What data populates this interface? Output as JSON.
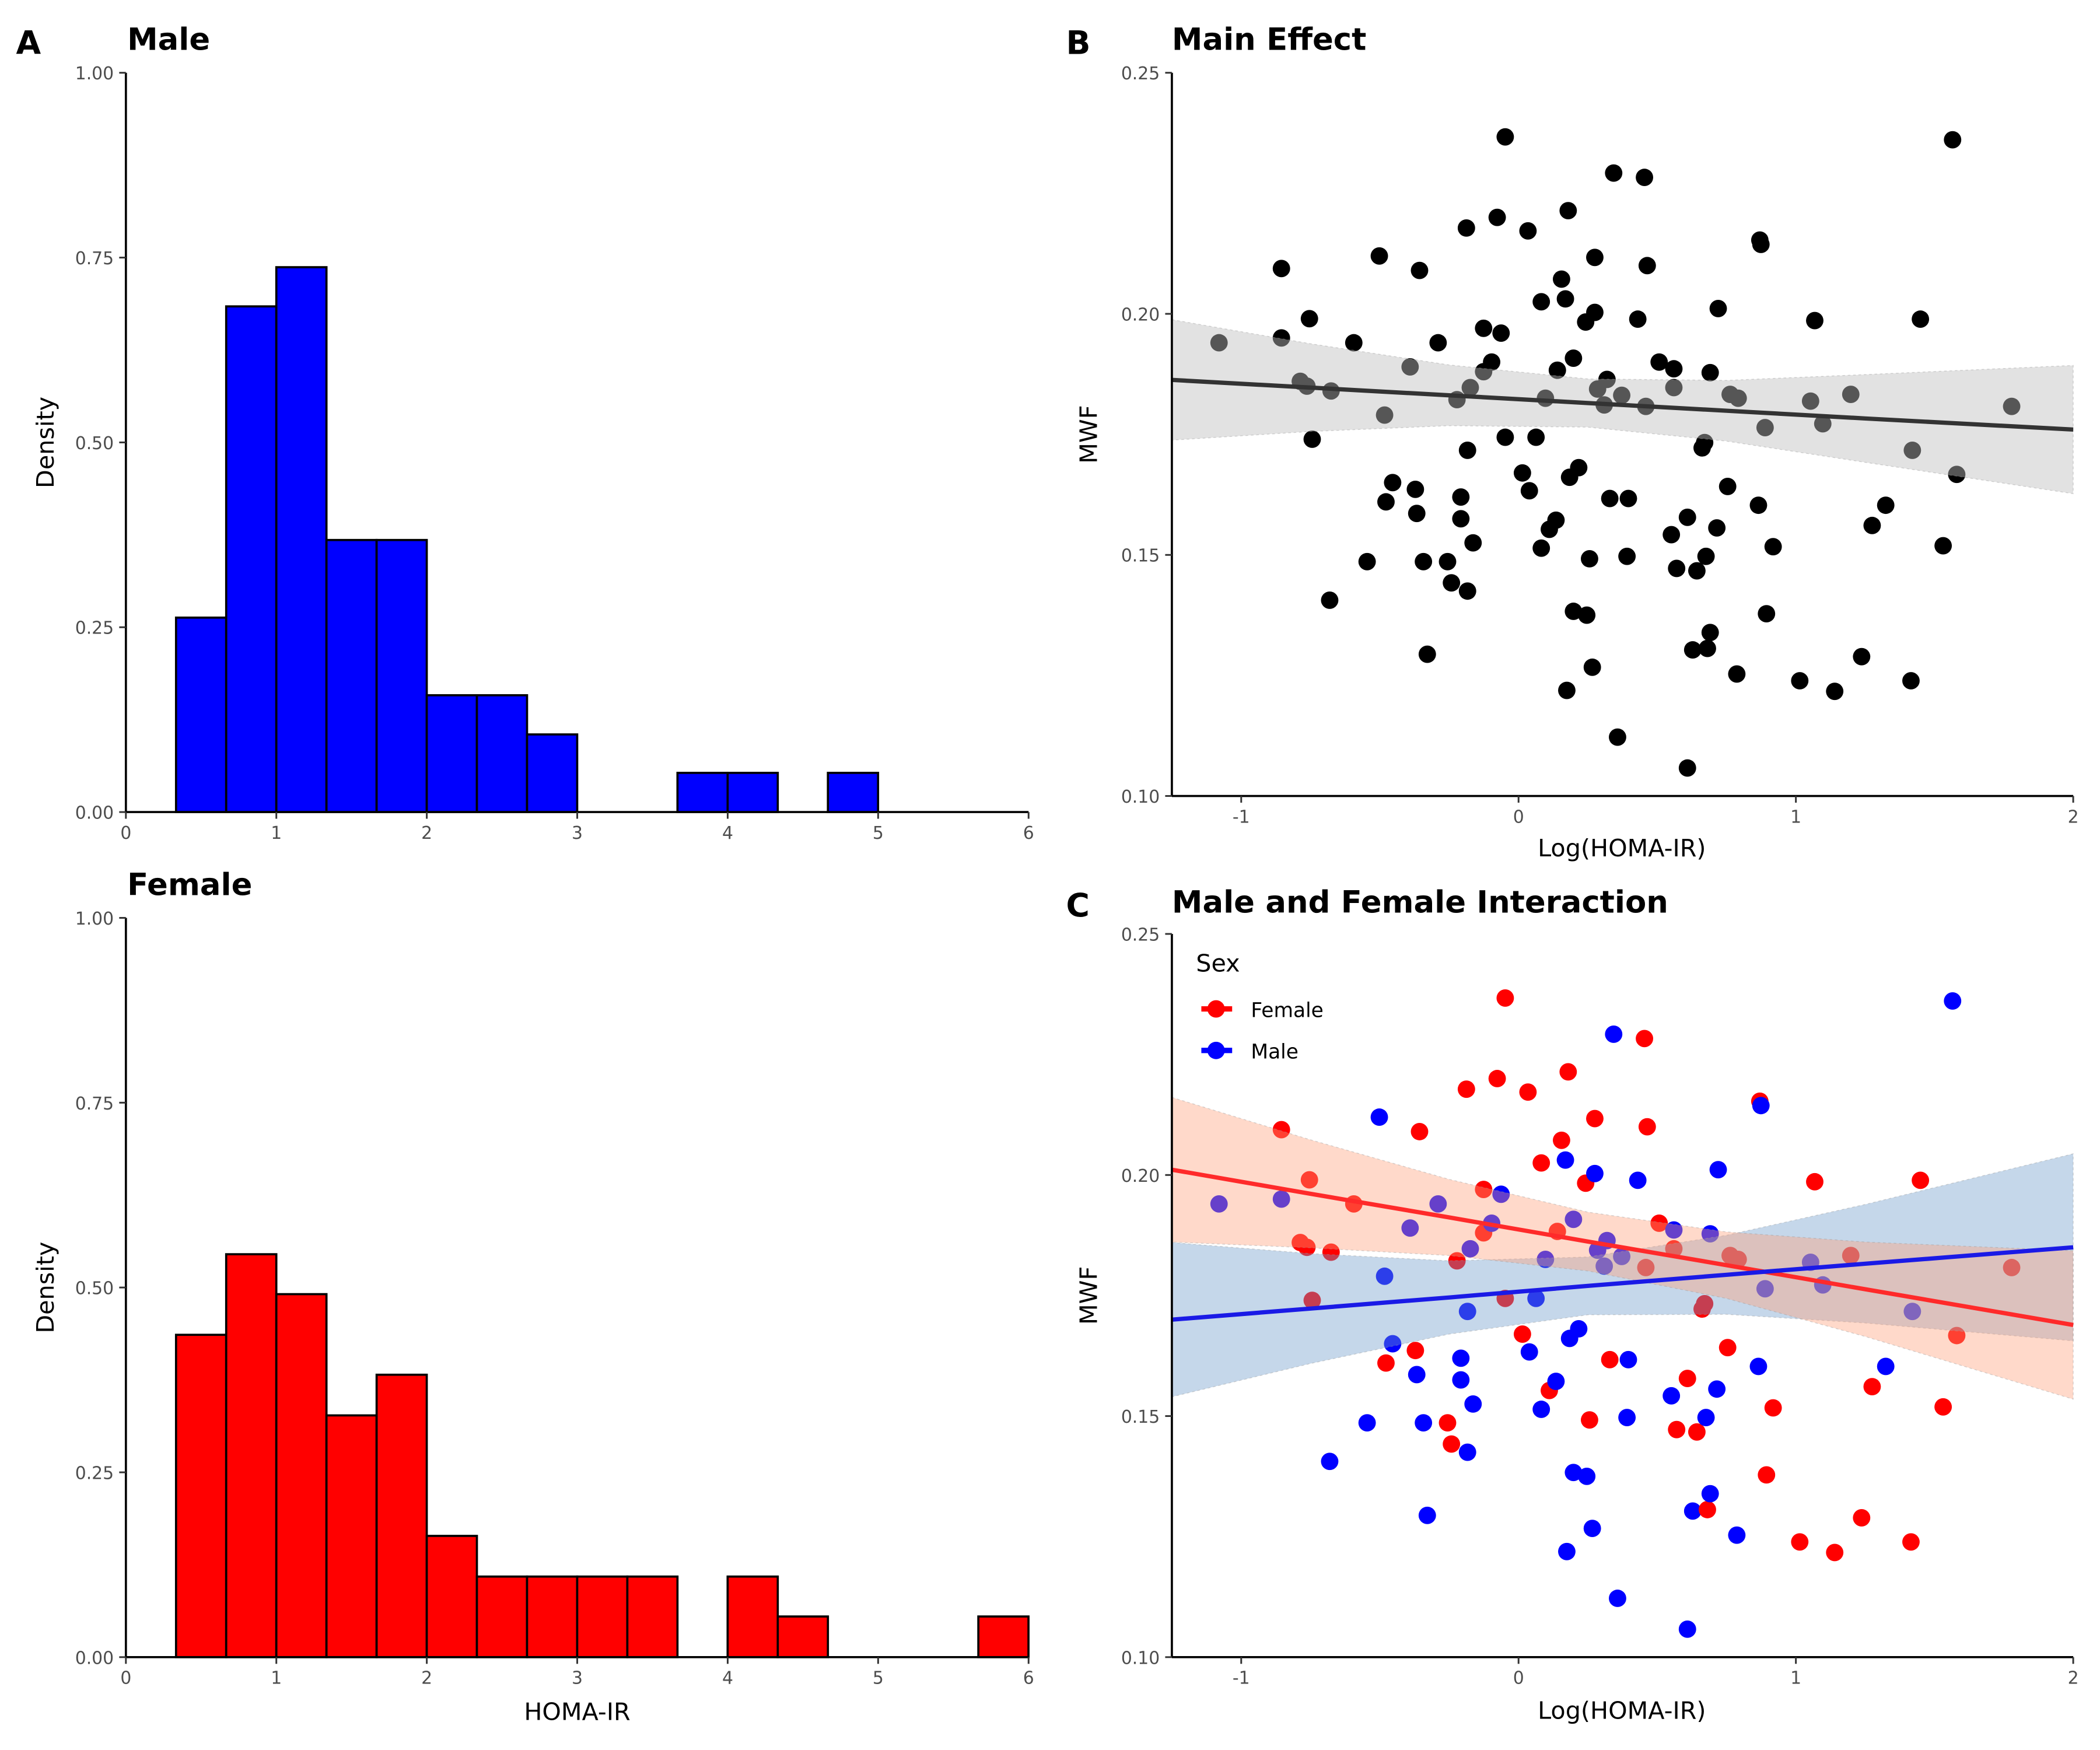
{
  "panel_labels": {
    "a": "A",
    "b": "B",
    "c": "C"
  },
  "colors": {
    "male": "#0000FF",
    "female": "#FF0000",
    "fit_main": "#333333",
    "ribbon_main": "#BEBEBE",
    "ribbon_female": "#FFA07A",
    "ribbon_male": "#6E9CCB",
    "male_line": "#1A1AE6",
    "female_line": "#FF2A2A"
  },
  "chart_data": [
    {
      "type": "bar",
      "title": "Male",
      "xlabel": "",
      "ylabel": "Density",
      "xlim": [
        0,
        6
      ],
      "ylim": [
        0,
        1
      ],
      "xticks": [
        "0",
        "1",
        "2",
        "3",
        "4",
        "5",
        "6"
      ],
      "yticks": [
        "0.00",
        "0.25",
        "0.50",
        "0.75",
        "1.00"
      ],
      "bin_start": 0.3333,
      "bin_width": 0.3333,
      "density": [
        0.263,
        0.684,
        0.737,
        0.368,
        0.368,
        0.158,
        0.158,
        0.105,
        0,
        0,
        0.053,
        0.053,
        0,
        0.053
      ],
      "fill": "#0000FF"
    },
    {
      "type": "bar",
      "title": "Female",
      "xlabel": "HOMA-IR",
      "ylabel": "Density",
      "xlim": [
        0,
        6
      ],
      "ylim": [
        0,
        1
      ],
      "xticks": [
        "0",
        "1",
        "2",
        "3",
        "4",
        "5",
        "6"
      ],
      "yticks": [
        "0.00",
        "0.25",
        "0.50",
        "0.75",
        "1.00"
      ],
      "bin_start": 0.3333,
      "bin_width": 0.3333,
      "density": [
        0.436,
        0.545,
        0.491,
        0.327,
        0.382,
        0.164,
        0.109,
        0.109,
        0.109,
        0.109,
        0,
        0.109,
        0.055,
        0,
        0,
        0,
        0.055
      ],
      "fill": "#FF0000"
    },
    {
      "type": "scatter",
      "title": "Main Effect",
      "xlabel": "Log(HOMA-IR)",
      "ylabel": "MWF",
      "xlim": [
        -1.25,
        2
      ],
      "ylim": [
        0.1,
        0.25
      ],
      "xticks": [
        "-1",
        "0",
        "1",
        "2"
      ],
      "yticks": [
        "0.10",
        "0.15",
        "0.20",
        "0.25"
      ],
      "fit": {
        "x": [
          -1.25,
          -0.75,
          -0.25,
          0.25,
          0.75,
          1.25,
          2
        ],
        "y": [
          0.1863,
          0.1847,
          0.1831,
          0.1815,
          0.1799,
          0.1783,
          0.176
        ],
        "lower": [
          0.1738,
          0.1756,
          0.1768,
          0.1765,
          0.1736,
          0.1692,
          0.1627
        ],
        "upper": [
          0.1988,
          0.1938,
          0.1894,
          0.1865,
          0.1862,
          0.1874,
          0.1893
        ]
      },
      "points": [
        [
          -1.08,
          0.194
        ],
        [
          -0.855,
          0.2094
        ],
        [
          -0.855,
          0.195
        ],
        [
          -0.754,
          0.199
        ],
        [
          -0.787,
          0.186
        ],
        [
          -0.763,
          0.185
        ],
        [
          -0.744,
          0.174
        ],
        [
          -0.676,
          0.184
        ],
        [
          -0.681,
          0.1406
        ],
        [
          -0.594,
          0.194
        ],
        [
          -0.546,
          0.1486
        ],
        [
          -0.502,
          0.212
        ],
        [
          -0.483,
          0.179
        ],
        [
          -0.454,
          0.165
        ],
        [
          -0.478,
          0.161
        ],
        [
          -0.391,
          0.189
        ],
        [
          -0.357,
          0.209
        ],
        [
          -0.372,
          0.1636
        ],
        [
          -0.367,
          0.1586
        ],
        [
          -0.343,
          0.1486
        ],
        [
          -0.329,
          0.1294
        ],
        [
          -0.29,
          0.194
        ],
        [
          -0.256,
          0.1486
        ],
        [
          -0.242,
          0.1442
        ],
        [
          -0.222,
          0.1822
        ],
        [
          -0.208,
          0.162
        ],
        [
          -0.208,
          0.1575
        ],
        [
          -0.188,
          0.2178
        ],
        [
          -0.184,
          0.1717
        ],
        [
          -0.184,
          0.1425
        ],
        [
          -0.174,
          0.1847
        ],
        [
          -0.164,
          0.1525
        ],
        [
          -0.126,
          0.197
        ],
        [
          -0.126,
          0.188
        ],
        [
          -0.097,
          0.19
        ],
        [
          -0.077,
          0.22
        ],
        [
          -0.063,
          0.196
        ],
        [
          -0.048,
          0.2367
        ],
        [
          -0.048,
          0.1744
        ],
        [
          0.014,
          0.167
        ],
        [
          0.034,
          0.2172
        ],
        [
          0.039,
          0.1633
        ],
        [
          0.063,
          0.1744
        ],
        [
          0.082,
          0.2025
        ],
        [
          0.082,
          0.1514
        ],
        [
          0.097,
          0.1825
        ],
        [
          0.111,
          0.1553
        ],
        [
          0.135,
          0.1572
        ],
        [
          0.14,
          0.1883
        ],
        [
          0.155,
          0.2072
        ],
        [
          0.169,
          0.2031
        ],
        [
          0.179,
          0.2214
        ],
        [
          0.174,
          0.1219
        ],
        [
          0.184,
          0.1661
        ],
        [
          0.198,
          0.1908
        ],
        [
          0.198,
          0.1383
        ],
        [
          0.217,
          0.1681
        ],
        [
          0.242,
          0.1983
        ],
        [
          0.246,
          0.1375
        ],
        [
          0.256,
          0.1492
        ],
        [
          0.266,
          0.1267
        ],
        [
          0.275,
          0.2117
        ],
        [
          0.275,
          0.2003
        ],
        [
          0.285,
          0.1844
        ],
        [
          0.319,
          0.1864
        ],
        [
          0.309,
          0.1811
        ],
        [
          0.329,
          0.1617
        ],
        [
          0.343,
          0.2292
        ],
        [
          0.357,
          0.1122
        ],
        [
          0.372,
          0.1831
        ],
        [
          0.396,
          0.1617
        ],
        [
          0.391,
          0.1497
        ],
        [
          0.43,
          0.1989
        ],
        [
          0.454,
          0.2283
        ],
        [
          0.464,
          0.21
        ],
        [
          0.459,
          0.1808
        ],
        [
          0.507,
          0.19
        ],
        [
          0.551,
          0.1542
        ],
        [
          0.56,
          0.1847
        ],
        [
          0.56,
          0.1886
        ],
        [
          0.57,
          0.1472
        ],
        [
          0.609,
          0.1578
        ],
        [
          0.609,
          0.1058
        ],
        [
          0.628,
          0.1303
        ],
        [
          0.643,
          0.1467
        ],
        [
          0.662,
          0.1722
        ],
        [
          0.671,
          0.1733
        ],
        [
          0.676,
          0.1497
        ],
        [
          0.681,
          0.1306
        ],
        [
          0.691,
          0.1339
        ],
        [
          0.691,
          0.1878
        ],
        [
          0.715,
          0.1556
        ],
        [
          0.72,
          0.2011
        ],
        [
          0.754,
          0.1642
        ],
        [
          0.763,
          0.1833
        ],
        [
          0.792,
          0.1825
        ],
        [
          0.787,
          0.1253
        ],
        [
          0.865,
          0.1603
        ],
        [
          0.87,
          0.2153
        ],
        [
          0.874,
          0.2144
        ],
        [
          0.889,
          0.1764
        ],
        [
          0.894,
          0.1378
        ],
        [
          0.918,
          0.1517
        ],
        [
          1.014,
          0.1239
        ],
        [
          1.053,
          0.1819
        ],
        [
          1.068,
          0.1986
        ],
        [
          1.097,
          0.1772
        ],
        [
          1.14,
          0.1217
        ],
        [
          1.198,
          0.1833
        ],
        [
          1.237,
          0.1289
        ],
        [
          1.275,
          0.1561
        ],
        [
          1.324,
          0.1603
        ],
        [
          1.415,
          0.1239
        ],
        [
          1.42,
          0.1717
        ],
        [
          1.449,
          0.1989
        ],
        [
          1.531,
          0.1519
        ],
        [
          1.565,
          0.2361
        ],
        [
          1.58,
          0.1667
        ],
        [
          1.778,
          0.1808
        ]
      ]
    },
    {
      "type": "scatter",
      "title": "Male and Female Interaction",
      "xlabel": "Log(HOMA-IR)",
      "ylabel": "MWF",
      "xlim": [
        -1.25,
        2
      ],
      "ylim": [
        0.1,
        0.25
      ],
      "xticks": [
        "-1",
        "0",
        "1",
        "2"
      ],
      "yticks": [
        "0.10",
        "0.15",
        "0.20",
        "0.25"
      ],
      "legend": {
        "title": "Sex",
        "position": "top-left",
        "entries": [
          {
            "key": "F",
            "label": "Female"
          },
          {
            "key": "M",
            "label": "Male"
          }
        ]
      },
      "fits": {
        "F": {
          "x": [
            -1.25,
            -0.75,
            -0.25,
            0.25,
            0.75,
            1.25,
            2
          ],
          "y": [
            0.2011,
            0.1961,
            0.1912,
            0.1862,
            0.1813,
            0.1763,
            0.1689
          ],
          "lower": [
            0.1861,
            0.1849,
            0.1833,
            0.1801,
            0.1744,
            0.1665,
            0.1535
          ],
          "upper": [
            0.2161,
            0.2073,
            0.1991,
            0.1923,
            0.1882,
            0.1861,
            0.1843
          ]
        },
        "M": {
          "x": [
            -1.25,
            -0.75,
            -0.25,
            0.25,
            0.75,
            1.25,
            2
          ],
          "y": [
            0.17,
            0.1723,
            0.1746,
            0.177,
            0.1793,
            0.1816,
            0.185
          ],
          "lower": [
            0.154,
            0.1609,
            0.167,
            0.171,
            0.1711,
            0.1693,
            0.1656
          ],
          "upper": [
            0.186,
            0.1837,
            0.1822,
            0.183,
            0.1875,
            0.1939,
            0.2044
          ]
        }
      },
      "points": [
        [
          -1.08,
          0.194,
          "M"
        ],
        [
          -0.855,
          0.2094,
          "F"
        ],
        [
          -0.855,
          0.195,
          "M"
        ],
        [
          -0.754,
          0.199,
          "F"
        ],
        [
          -0.787,
          0.186,
          "F"
        ],
        [
          -0.763,
          0.185,
          "F"
        ],
        [
          -0.744,
          0.174,
          "F"
        ],
        [
          -0.676,
          0.184,
          "F"
        ],
        [
          -0.681,
          0.1406,
          "M"
        ],
        [
          -0.594,
          0.194,
          "F"
        ],
        [
          -0.546,
          0.1486,
          "M"
        ],
        [
          -0.502,
          0.212,
          "M"
        ],
        [
          -0.483,
          0.179,
          "M"
        ],
        [
          -0.454,
          0.165,
          "M"
        ],
        [
          -0.478,
          0.161,
          "F"
        ],
        [
          -0.391,
          0.189,
          "M"
        ],
        [
          -0.357,
          0.209,
          "F"
        ],
        [
          -0.372,
          0.1636,
          "F"
        ],
        [
          -0.367,
          0.1586,
          "M"
        ],
        [
          -0.343,
          0.1486,
          "M"
        ],
        [
          -0.329,
          0.1294,
          "M"
        ],
        [
          -0.29,
          0.194,
          "M"
        ],
        [
          -0.256,
          0.1486,
          "F"
        ],
        [
          -0.242,
          0.1442,
          "F"
        ],
        [
          -0.222,
          0.1822,
          "F"
        ],
        [
          -0.208,
          0.162,
          "M"
        ],
        [
          -0.208,
          0.1575,
          "M"
        ],
        [
          -0.188,
          0.2178,
          "F"
        ],
        [
          -0.184,
          0.1717,
          "M"
        ],
        [
          -0.184,
          0.1425,
          "M"
        ],
        [
          -0.174,
          0.1847,
          "M"
        ],
        [
          -0.164,
          0.1525,
          "M"
        ],
        [
          -0.126,
          0.197,
          "F"
        ],
        [
          -0.126,
          0.188,
          "F"
        ],
        [
          -0.097,
          0.19,
          "M"
        ],
        [
          -0.077,
          0.22,
          "F"
        ],
        [
          -0.063,
          0.196,
          "M"
        ],
        [
          -0.048,
          0.2367,
          "F"
        ],
        [
          -0.048,
          0.1744,
          "F"
        ],
        [
          0.014,
          0.167,
          "F"
        ],
        [
          0.034,
          0.2172,
          "F"
        ],
        [
          0.039,
          0.1633,
          "M"
        ],
        [
          0.063,
          0.1744,
          "M"
        ],
        [
          0.082,
          0.2025,
          "F"
        ],
        [
          0.082,
          0.1514,
          "M"
        ],
        [
          0.097,
          0.1825,
          "M"
        ],
        [
          0.111,
          0.1553,
          "F"
        ],
        [
          0.135,
          0.1572,
          "M"
        ],
        [
          0.14,
          0.1883,
          "F"
        ],
        [
          0.155,
          0.2072,
          "F"
        ],
        [
          0.169,
          0.2031,
          "M"
        ],
        [
          0.179,
          0.2214,
          "F"
        ],
        [
          0.174,
          0.1219,
          "M"
        ],
        [
          0.184,
          0.1661,
          "M"
        ],
        [
          0.198,
          0.1908,
          "M"
        ],
        [
          0.198,
          0.1383,
          "M"
        ],
        [
          0.217,
          0.1681,
          "M"
        ],
        [
          0.242,
          0.1983,
          "F"
        ],
        [
          0.246,
          0.1375,
          "M"
        ],
        [
          0.256,
          0.1492,
          "F"
        ],
        [
          0.266,
          0.1267,
          "M"
        ],
        [
          0.275,
          0.2117,
          "F"
        ],
        [
          0.275,
          0.2003,
          "M"
        ],
        [
          0.285,
          0.1844,
          "M"
        ],
        [
          0.319,
          0.1864,
          "M"
        ],
        [
          0.309,
          0.1811,
          "M"
        ],
        [
          0.329,
          0.1617,
          "F"
        ],
        [
          0.343,
          0.2292,
          "M"
        ],
        [
          0.357,
          0.1122,
          "M"
        ],
        [
          0.372,
          0.1831,
          "M"
        ],
        [
          0.396,
          0.1617,
          "M"
        ],
        [
          0.391,
          0.1497,
          "M"
        ],
        [
          0.43,
          0.1989,
          "M"
        ],
        [
          0.454,
          0.2283,
          "F"
        ],
        [
          0.464,
          0.21,
          "F"
        ],
        [
          0.459,
          0.1808,
          "F"
        ],
        [
          0.507,
          0.19,
          "F"
        ],
        [
          0.551,
          0.1542,
          "M"
        ],
        [
          0.56,
          0.1847,
          "F"
        ],
        [
          0.56,
          0.1886,
          "M"
        ],
        [
          0.57,
          0.1472,
          "F"
        ],
        [
          0.609,
          0.1578,
          "F"
        ],
        [
          0.609,
          0.1058,
          "M"
        ],
        [
          0.628,
          0.1303,
          "M"
        ],
        [
          0.643,
          0.1467,
          "F"
        ],
        [
          0.662,
          0.1722,
          "F"
        ],
        [
          0.671,
          0.1733,
          "F"
        ],
        [
          0.676,
          0.1497,
          "M"
        ],
        [
          0.681,
          0.1306,
          "F"
        ],
        [
          0.691,
          0.1339,
          "M"
        ],
        [
          0.691,
          0.1878,
          "M"
        ],
        [
          0.715,
          0.1556,
          "M"
        ],
        [
          0.72,
          0.2011,
          "M"
        ],
        [
          0.754,
          0.1642,
          "F"
        ],
        [
          0.763,
          0.1833,
          "F"
        ],
        [
          0.792,
          0.1825,
          "F"
        ],
        [
          0.787,
          0.1253,
          "M"
        ],
        [
          0.865,
          0.1603,
          "M"
        ],
        [
          0.87,
          0.2153,
          "F"
        ],
        [
          0.874,
          0.2144,
          "M"
        ],
        [
          0.889,
          0.1764,
          "M"
        ],
        [
          0.894,
          0.1378,
          "F"
        ],
        [
          0.918,
          0.1517,
          "F"
        ],
        [
          1.014,
          0.1239,
          "F"
        ],
        [
          1.053,
          0.1819,
          "M"
        ],
        [
          1.068,
          0.1986,
          "F"
        ],
        [
          1.097,
          0.1772,
          "M"
        ],
        [
          1.14,
          0.1217,
          "F"
        ],
        [
          1.198,
          0.1833,
          "F"
        ],
        [
          1.237,
          0.1289,
          "F"
        ],
        [
          1.275,
          0.1561,
          "F"
        ],
        [
          1.324,
          0.1603,
          "M"
        ],
        [
          1.415,
          0.1239,
          "F"
        ],
        [
          1.42,
          0.1717,
          "M"
        ],
        [
          1.449,
          0.1989,
          "F"
        ],
        [
          1.531,
          0.1519,
          "F"
        ],
        [
          1.565,
          0.2361,
          "M"
        ],
        [
          1.58,
          0.1667,
          "F"
        ],
        [
          1.778,
          0.1808,
          "F"
        ]
      ]
    }
  ]
}
